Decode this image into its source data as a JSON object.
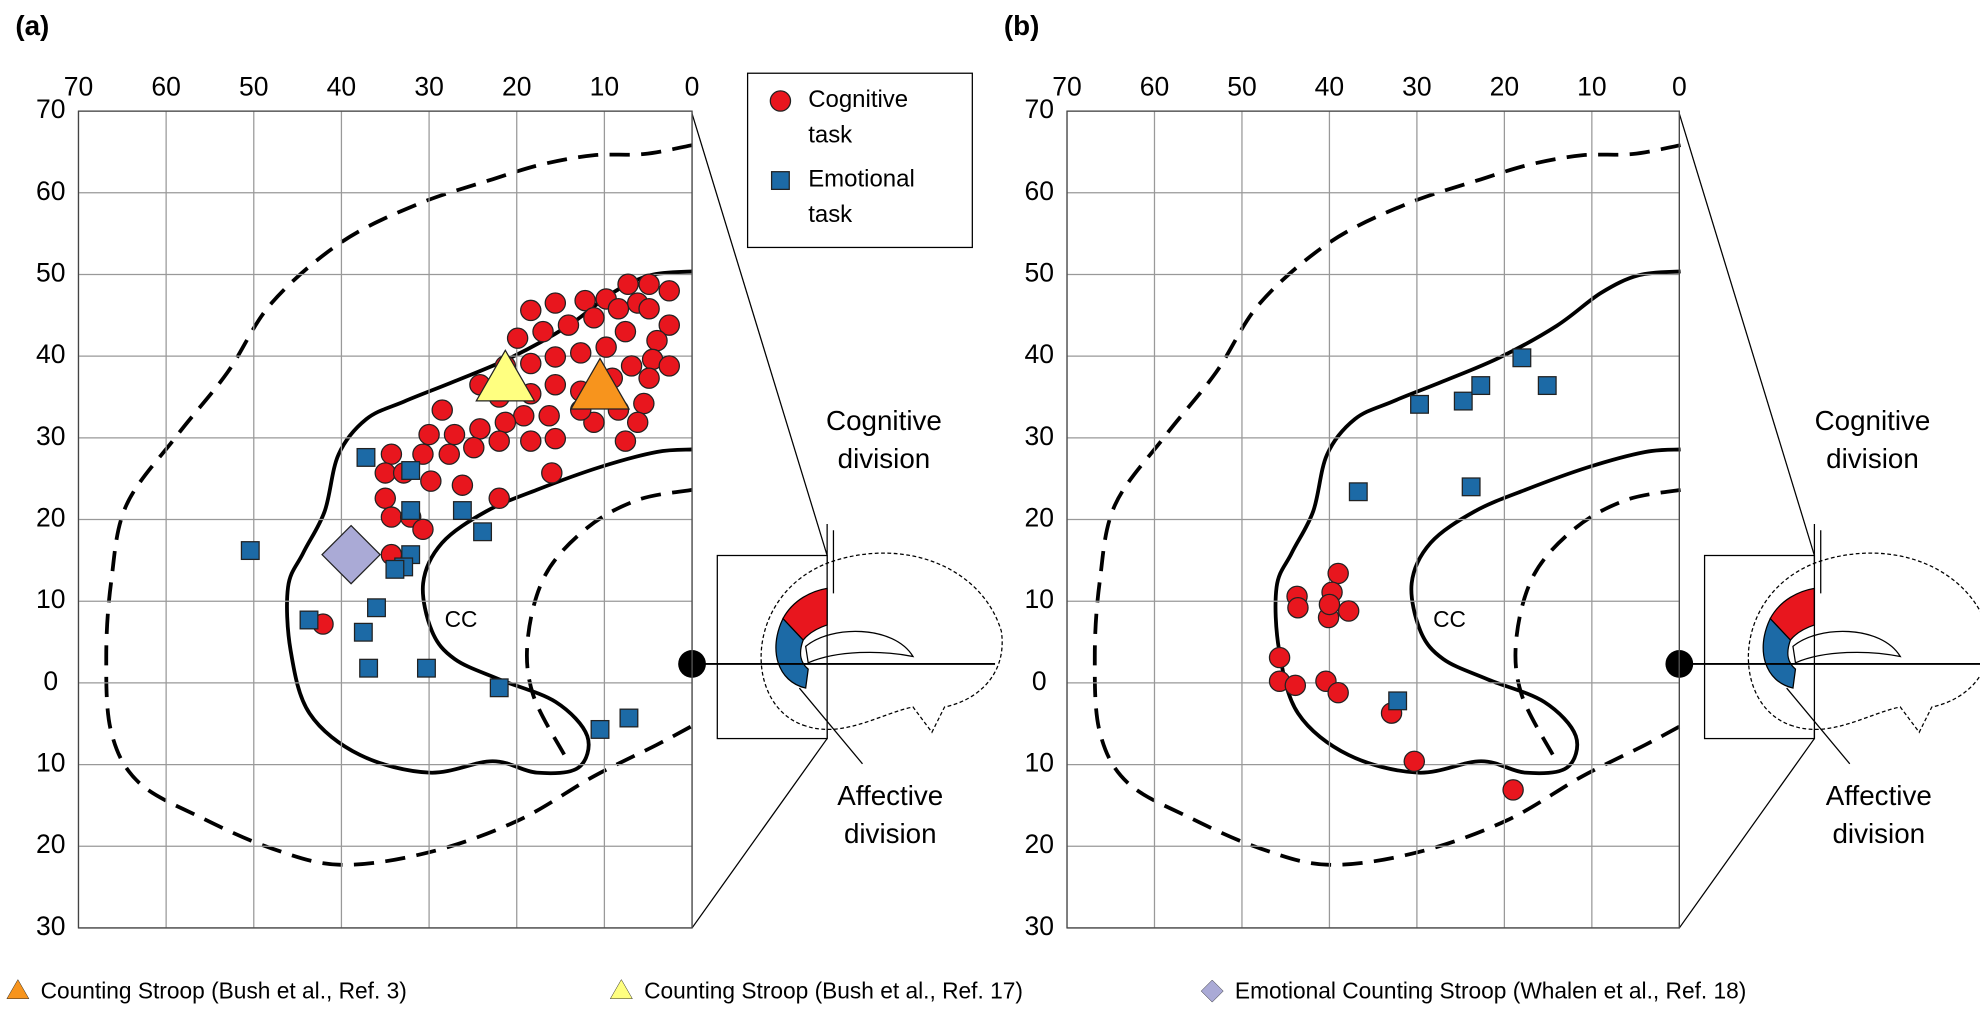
{
  "chart_data": [
    {
      "type": "scatter",
      "title": "(a)",
      "xlim": [
        70,
        0
      ],
      "xticks": [
        70,
        60,
        50,
        40,
        30,
        20,
        10,
        0
      ],
      "ylim": [
        -30,
        70
      ],
      "yticks": [
        70,
        60,
        50,
        40,
        30,
        20,
        10,
        0,
        {
          "value": -10,
          "label": "10"
        },
        {
          "value": -20,
          "label": "20"
        },
        {
          "value": -30,
          "label": "30"
        }
      ],
      "grid": true,
      "annotations": [
        "CC",
        "Cognitive division",
        "Affective division"
      ],
      "series": [
        {
          "name": "Cognitive task",
          "color": "#e8161e",
          "marker": "circle",
          "x": [
            7.3,
            4.9,
            2.6,
            9.8,
            12.2,
            15.6,
            18.4,
            6.2,
            8.4,
            4.9,
            2.6,
            11.2,
            14.1,
            17,
            19.9,
            7.6,
            4,
            9.8,
            12.7,
            15.6,
            18.4,
            21.3,
            4.5,
            2.6,
            6.9,
            4.9,
            9.1,
            12.7,
            15.6,
            18.4,
            22,
            24.2,
            5.5,
            6.2,
            8.4,
            11.2,
            12.7,
            16.3,
            19.2,
            21.3,
            24.2,
            27.1,
            30,
            28.5,
            15.6,
            18.4,
            22,
            24.9,
            27.7,
            30.7,
            34.3,
            35,
            32.9,
            29.8,
            26.2,
            22,
            16,
            7.6,
            35,
            34.3,
            32.1,
            30.7,
            34.3,
            42.1
          ],
          "values": [
            48.8,
            48.8,
            48,
            47,
            46.8,
            46.5,
            45.6,
            46.5,
            45.8,
            45.8,
            43.8,
            44.7,
            43.8,
            43,
            42.2,
            43,
            41.9,
            41.1,
            40.4,
            39.9,
            39.1,
            38.8,
            39.6,
            38.8,
            38.8,
            37.3,
            37.3,
            35.7,
            36.5,
            35.4,
            35,
            36.5,
            34.2,
            31.9,
            33.4,
            31.9,
            33.4,
            32.7,
            32.7,
            31.9,
            31.1,
            30.4,
            30.4,
            33.4,
            29.9,
            29.6,
            29.6,
            28.8,
            28,
            28,
            28,
            25.7,
            25.7,
            24.7,
            24.2,
            22.6,
            25.7,
            29.6,
            22.6,
            20.3,
            20.3,
            18.8,
            15.7,
            7.2
          ]
        },
        {
          "name": "Emotional task",
          "color": "#1c6aa6",
          "marker": "square",
          "x": [
            37.2,
            32.1,
            32.1,
            26.2,
            23.9,
            50.4,
            32.1,
            32.9,
            33.9,
            36,
            43.7,
            37.5,
            36.9,
            30.3,
            22,
            10.5,
            7.2
          ],
          "values": [
            27.6,
            26,
            21.1,
            21.1,
            18.5,
            16.2,
            15.7,
            14.2,
            13.9,
            9.2,
            7.7,
            6.2,
            1.8,
            1.8,
            -0.6,
            -5.7,
            -4.3
          ]
        },
        {
          "name": "Counting Stroop (Bush et al., Ref. 3)",
          "color": "#f7941d",
          "marker": "triangle",
          "x": [
            10.5
          ],
          "values": [
            36
          ]
        },
        {
          "name": "Counting Stroop (Bush et al., Ref. 17)",
          "color": "#ffff80",
          "marker": "triangle",
          "x": [
            21.3
          ],
          "values": [
            37
          ]
        },
        {
          "name": "Emotional Counting Stroop (Whalen et al., Ref. 18)",
          "color": "#aaaad6",
          "marker": "diamond",
          "x": [
            38.9
          ],
          "values": [
            15.7
          ]
        }
      ]
    },
    {
      "type": "scatter",
      "title": "(b)",
      "xlim": [
        70,
        0
      ],
      "xticks": [
        70,
        60,
        50,
        40,
        30,
        20,
        10,
        0
      ],
      "ylim": [
        -30,
        70
      ],
      "yticks": [
        70,
        60,
        50,
        40,
        30,
        20,
        10,
        0,
        {
          "value": -10,
          "label": "10"
        },
        {
          "value": -20,
          "label": "20"
        },
        {
          "value": -30,
          "label": "30"
        }
      ],
      "grid": true,
      "annotations": [
        "CC",
        "Cognitive division",
        "Affective division"
      ],
      "series": [
        {
          "color": "#e8161e",
          "marker": "circle",
          "x": [
            43.7,
            43.6,
            39,
            39.7,
            37.8,
            40.1,
            45.7,
            45.7,
            43.9,
            40.4,
            39,
            32.9,
            30.3,
            19,
            40
          ],
          "values": [
            10.6,
            9.2,
            13.4,
            11.1,
            8.8,
            8,
            3.1,
            0.2,
            -0.3,
            0.2,
            -1.2,
            -3.7,
            -9.6,
            -13.1,
            9.6
          ]
        },
        {
          "color": "#1c6aa6",
          "marker": "square",
          "x": [
            36.7,
            29.7,
            24.7,
            22.7,
            18,
            15.1,
            23.8,
            32.2
          ],
          "values": [
            23.4,
            34.1,
            34.5,
            36.4,
            39.8,
            36.4,
            24,
            -2.2
          ]
        }
      ]
    }
  ]
}
